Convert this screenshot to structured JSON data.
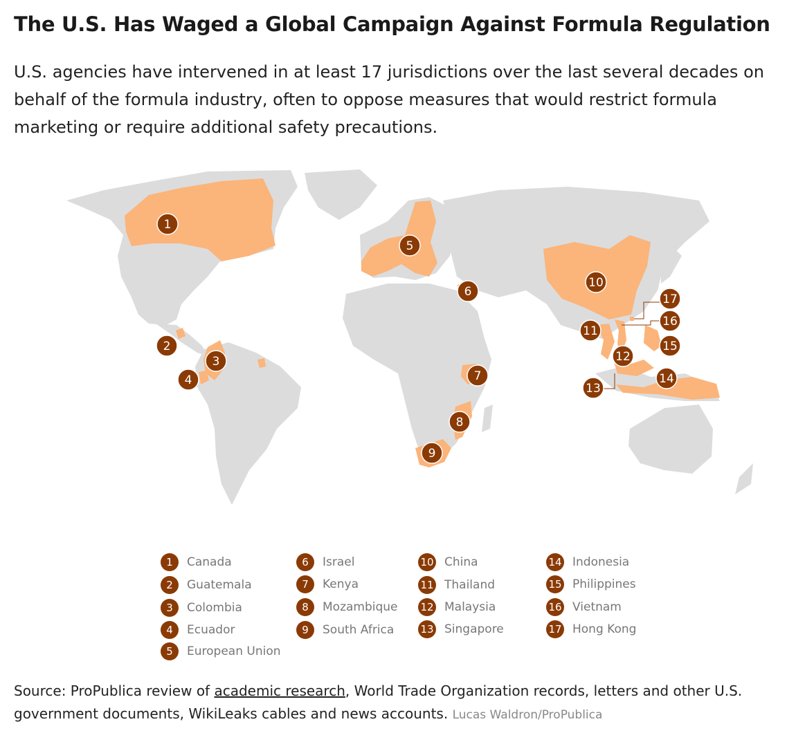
{
  "title": "The U.S. Has Waged a Global Campaign Against Formula Regulation",
  "subtitle": "U.S. agencies have intervened in at least 17 jurisdictions over the last several decades on behalf of the formula industry, often to oppose measures that would restrict formula marketing or require additional safety precautions.",
  "colors": {
    "land": "#dcdcdc",
    "highlight": "#fbb47a",
    "marker": "#8a3a05",
    "marker_text": "#ffffff"
  },
  "markers": [
    {
      "num": "1",
      "name": "Canada"
    },
    {
      "num": "2",
      "name": "Guatemala"
    },
    {
      "num": "3",
      "name": "Colombia"
    },
    {
      "num": "4",
      "name": "Ecuador"
    },
    {
      "num": "5",
      "name": "European Union"
    },
    {
      "num": "6",
      "name": "Israel"
    },
    {
      "num": "7",
      "name": "Kenya"
    },
    {
      "num": "8",
      "name": "Mozambique"
    },
    {
      "num": "9",
      "name": "South Africa"
    },
    {
      "num": "10",
      "name": "China"
    },
    {
      "num": "11",
      "name": "Thailand"
    },
    {
      "num": "12",
      "name": "Malaysia"
    },
    {
      "num": "13",
      "name": "Singapore"
    },
    {
      "num": "14",
      "name": "Indonesia"
    },
    {
      "num": "15",
      "name": "Philippines"
    },
    {
      "num": "16",
      "name": "Vietnam"
    },
    {
      "num": "17",
      "name": "Hong Kong"
    }
  ],
  "source": {
    "prefix": "Source: ProPublica review of ",
    "link_text": "academic research",
    "suffix": ", World Trade Organization records, letters and other U.S. government documents, WikiLeaks cables and news accounts.",
    "credit": "Lucas Waldron/ProPublica"
  }
}
